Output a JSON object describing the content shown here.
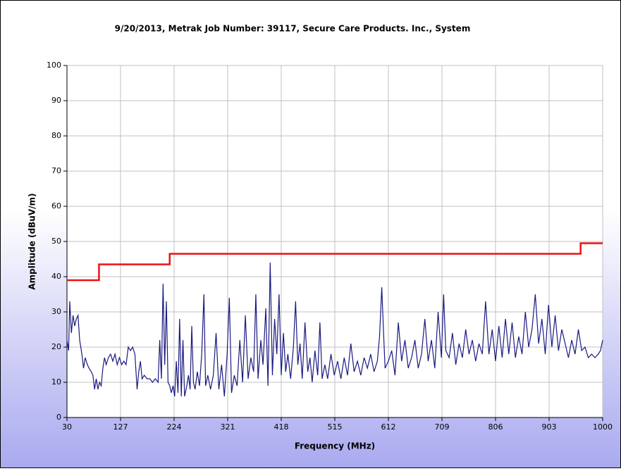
{
  "chart_data": {
    "type": "line",
    "title": "9/20/2013, Metrak Job Number: 39117, Secure Care Products. Inc., System",
    "xlabel": "Frequency (MHz)",
    "ylabel": "Amplitude (dBuV/m)",
    "xlim": [
      30,
      1000
    ],
    "ylim": [
      0,
      100
    ],
    "xticks": [
      30,
      127,
      224,
      321,
      418,
      515,
      612,
      709,
      806,
      903,
      1000
    ],
    "yticks": [
      0,
      10,
      20,
      30,
      40,
      50,
      60,
      70,
      80,
      90,
      100
    ],
    "grid": true,
    "series": [
      {
        "color": "#ee1111",
        "x": [
          30,
          88,
          88,
          216,
          216,
          960,
          960,
          1000
        ],
        "values": [
          39,
          39,
          43.5,
          43.5,
          46.5,
          46.5,
          49.5,
          49.5
        ]
      },
      {
        "color": "#1a1a80",
        "x": [
          30,
          33,
          35,
          38,
          41,
          44,
          47,
          50,
          53,
          57,
          60,
          63,
          67,
          70,
          74,
          77,
          80,
          83,
          86,
          89,
          92,
          95,
          98,
          101,
          105,
          109,
          113,
          117,
          121,
          125,
          129,
          133,
          137,
          141,
          145,
          149,
          153,
          157,
          160,
          163,
          166,
          170,
          175,
          180,
          185,
          190,
          195,
          198,
          201,
          204,
          207,
          210,
          213,
          216,
          219,
          222,
          225,
          228,
          231,
          234,
          237,
          240,
          243,
          247,
          250,
          253,
          256,
          259,
          262,
          266,
          270,
          274,
          278,
          281,
          285,
          290,
          295,
          300,
          305,
          310,
          315,
          320,
          324,
          328,
          333,
          338,
          343,
          348,
          353,
          358,
          363,
          368,
          372,
          376,
          381,
          385,
          390,
          394,
          398,
          402,
          406,
          410,
          414,
          418,
          422,
          426,
          430,
          435,
          440,
          444,
          448,
          452,
          456,
          461,
          466,
          470,
          474,
          479,
          484,
          488,
          492,
          497,
          502,
          508,
          514,
          520,
          526,
          532,
          538,
          544,
          550,
          556,
          562,
          568,
          574,
          580,
          586,
          592,
          596,
          600,
          603,
          606,
          612,
          618,
          624,
          630,
          636,
          642,
          648,
          654,
          660,
          666,
          672,
          678,
          684,
          690,
          696,
          702,
          708,
          712,
          716,
          722,
          728,
          734,
          740,
          746,
          752,
          758,
          764,
          770,
          776,
          782,
          788,
          794,
          800,
          806,
          812,
          818,
          824,
          830,
          836,
          842,
          848,
          854,
          860,
          866,
          872,
          878,
          884,
          890,
          896,
          902,
          908,
          914,
          920,
          926,
          932,
          938,
          944,
          950,
          956,
          962,
          968,
          974,
          980,
          986,
          992,
          996,
          1000
        ],
        "values": [
          22,
          19,
          33,
          24,
          29,
          26,
          28,
          29,
          22,
          18,
          14,
          17,
          15,
          14,
          13,
          12,
          8,
          11,
          8,
          10,
          9,
          14,
          17,
          15,
          17,
          18,
          16,
          18,
          15,
          17,
          15,
          16,
          15,
          20,
          19,
          20,
          18,
          8,
          13,
          16,
          11,
          12,
          11,
          11,
          10,
          11,
          10,
          22,
          11,
          38,
          15,
          33,
          10,
          9,
          7,
          9,
          6,
          16,
          7,
          28,
          6,
          22,
          6,
          9,
          12,
          8,
          26,
          10,
          8,
          13,
          9,
          18,
          35,
          9,
          12,
          8,
          12,
          24,
          8,
          15,
          6,
          18,
          34,
          7,
          12,
          9,
          22,
          10,
          29,
          11,
          17,
          13,
          35,
          11,
          22,
          15,
          31,
          9,
          44,
          12,
          28,
          18,
          35,
          12,
          24,
          13,
          18,
          11,
          20,
          33,
          15,
          21,
          11,
          27,
          13,
          17,
          10,
          19,
          12,
          27,
          11,
          15,
          11,
          18,
          12,
          16,
          11,
          17,
          12,
          21,
          13,
          16,
          12,
          17,
          14,
          18,
          13,
          16,
          23,
          37,
          25,
          14,
          16,
          19,
          12,
          27,
          16,
          22,
          14,
          17,
          22,
          14,
          18,
          28,
          16,
          22,
          14,
          30,
          17,
          35,
          19,
          17,
          24,
          15,
          21,
          17,
          25,
          18,
          22,
          16,
          21,
          18,
          33,
          18,
          25,
          16,
          26,
          17,
          28,
          18,
          27,
          17,
          23,
          18,
          30,
          20,
          25,
          35,
          21,
          28,
          18,
          32,
          20,
          29,
          19,
          25,
          21,
          17,
          22,
          18,
          25,
          19,
          20,
          17,
          18,
          17,
          18,
          19,
          22
        ]
      }
    ]
  }
}
